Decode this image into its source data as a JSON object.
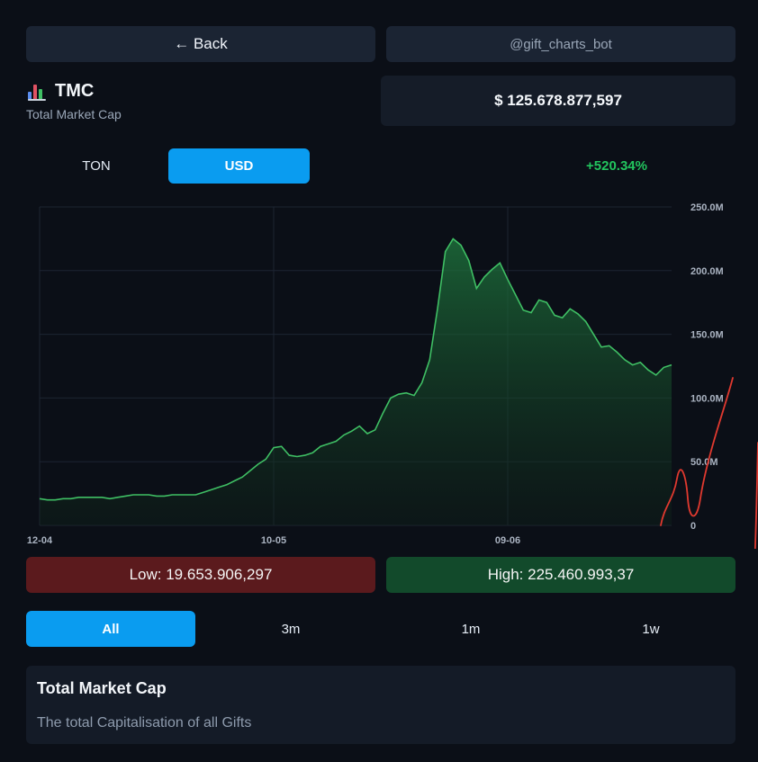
{
  "header": {
    "back_label": "← Back",
    "bot_label": "@gift_charts_bot"
  },
  "asset": {
    "icon": "bar-chart-icon",
    "title": "TMC",
    "subtitle": "Total Market Cap",
    "price": "$ 125.678.877,597"
  },
  "currency": {
    "options": [
      "TON",
      "USD"
    ],
    "selected": "USD",
    "change": "+520.34%"
  },
  "colors": {
    "accent": "#0a9cf0",
    "line": "#3fbf64",
    "positive": "#22c55e",
    "annotation": "#e0392f"
  },
  "chart_data": {
    "type": "area",
    "ylim": [
      0,
      250
    ],
    "y_unit": "M",
    "yticks": [
      "0",
      "50.0M",
      "100.0M",
      "150.0M",
      "200.0M",
      "250.0M"
    ],
    "xticks": [
      {
        "label": "12-04",
        "index": 0
      },
      {
        "label": "10-05",
        "index": 30
      },
      {
        "label": "09-06",
        "index": 60
      }
    ],
    "values": [
      21,
      20,
      20,
      21,
      21,
      22,
      22,
      22,
      22,
      21,
      22,
      23,
      24,
      24,
      24,
      23,
      23,
      24,
      24,
      24,
      24,
      26,
      28,
      30,
      32,
      35,
      38,
      43,
      48,
      52,
      61,
      62,
      55,
      54,
      55,
      57,
      62,
      64,
      66,
      71,
      74,
      78,
      72,
      75,
      88,
      100,
      103,
      104,
      102,
      112,
      130,
      170,
      215,
      225,
      220,
      208,
      186,
      195,
      201,
      206,
      193,
      181,
      169,
      167,
      177,
      175,
      165,
      163,
      170,
      166,
      160,
      150,
      140,
      141,
      136,
      130,
      126,
      128,
      122,
      118,
      124,
      126
    ],
    "hand_annotations": true
  },
  "stats": {
    "low": "Low: 19.653.906,297",
    "high": "High: 225.460.993,37"
  },
  "ranges": {
    "options": [
      "All",
      "3m",
      "1m",
      "1w"
    ],
    "selected": "All"
  },
  "info": {
    "title": "Total Market Cap",
    "description": "The total Capitalisation of all Gifts"
  }
}
